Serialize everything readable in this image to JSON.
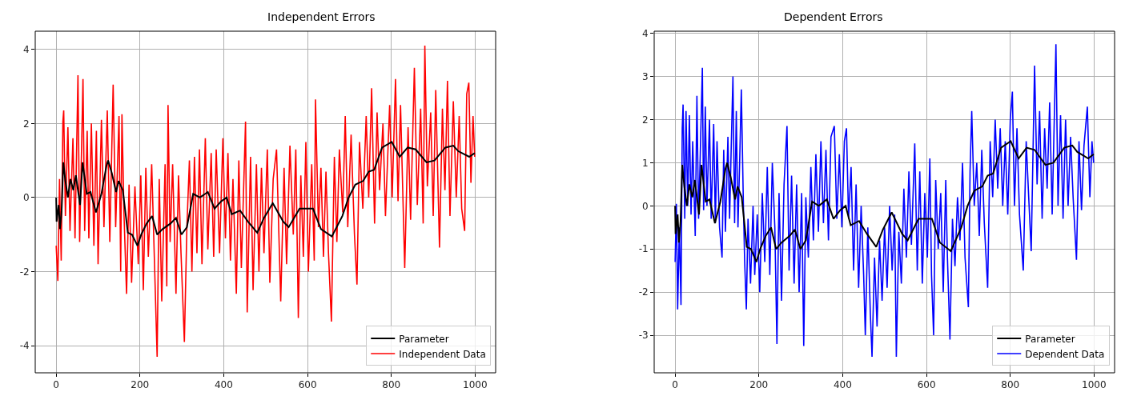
{
  "chart_data": [
    {
      "type": "line",
      "title": "Independent Errors",
      "xlim": [
        -50,
        1049
      ],
      "xticks": [
        0,
        200,
        400,
        600,
        800,
        1000
      ],
      "ylim": [
        -4.73,
        4.49
      ],
      "yticks": [
        -4,
        -2,
        0,
        2,
        4
      ],
      "grid": true,
      "legend": "bottom right",
      "marker": "none",
      "line_style": "solid",
      "series": [
        {
          "name": "Parameter",
          "color": "#000000",
          "x": [
            0,
            1,
            6,
            9,
            13,
            17,
            22,
            28,
            34,
            41,
            47,
            57,
            63,
            73,
            82,
            95,
            108,
            120,
            124,
            133,
            143,
            149,
            159,
            171,
            181,
            194,
            203,
            216,
            229,
            241,
            254,
            273,
            286,
            299,
            312,
            327,
            343,
            362,
            378,
            394,
            407,
            419,
            439,
            458,
            480,
            496,
            517,
            542,
            555,
            581,
            613,
            632,
            658,
            683,
            698,
            714,
            733,
            746,
            759,
            778,
            801,
            820,
            839,
            858,
            884,
            903,
            929,
            948,
            960,
            986,
            999
          ],
          "values": [
            0,
            -0.65,
            -0.2,
            -0.85,
            -0.35,
            0.95,
            0.45,
            0,
            0.5,
            0.2,
            0.6,
            -0.2,
            0.95,
            0.1,
            0.15,
            -0.4,
            0.1,
            0.85,
            1.0,
            0.65,
            0.15,
            0.45,
            0.2,
            -0.95,
            -1.0,
            -1.3,
            -1.0,
            -0.7,
            -0.5,
            -1.0,
            -0.85,
            -0.7,
            -0.55,
            -1.0,
            -0.8,
            0.1,
            0.0,
            0.15,
            -0.3,
            -0.1,
            0.0,
            -0.45,
            -0.35,
            -0.65,
            -0.95,
            -0.55,
            -0.15,
            -0.65,
            -0.8,
            -0.3,
            -0.3,
            -0.85,
            -1.05,
            -0.5,
            0.0,
            0.35,
            0.45,
            0.7,
            0.75,
            1.35,
            1.5,
            1.1,
            1.35,
            1.3,
            0.95,
            1.0,
            1.35,
            1.4,
            1.25,
            1.1,
            1.2
          ]
        },
        {
          "name": "Independent Data",
          "color": "#ff0000",
          "x": [
            0,
            4,
            8,
            12,
            16,
            18,
            22,
            28,
            33,
            40,
            45,
            52,
            56,
            64,
            68,
            74,
            78,
            84,
            90,
            96,
            100,
            108,
            114,
            122,
            128,
            136,
            142,
            150,
            154,
            157,
            162,
            168,
            174,
            180,
            188,
            196,
            202,
            208,
            214,
            220,
            228,
            234,
            241,
            246,
            252,
            260,
            264,
            267,
            272,
            278,
            286,
            292,
            298,
            306,
            312,
            318,
            324,
            330,
            336,
            342,
            348,
            356,
            362,
            370,
            376,
            382,
            390,
            398,
            404,
            410,
            416,
            422,
            430,
            436,
            442,
            452,
            456,
            464,
            470,
            478,
            484,
            490,
            496,
            504,
            510,
            518,
            526,
            536,
            544,
            550,
            558,
            566,
            572,
            578,
            584,
            590,
            596,
            602,
            610,
            616,
            619,
            626,
            632,
            638,
            644,
            650,
            657,
            664,
            670,
            676,
            684,
            690,
            696,
            704,
            712,
            718,
            724,
            732,
            740,
            746,
            753,
            760,
            766,
            772,
            780,
            786,
            796,
            802,
            810,
            816,
            822,
            832,
            840,
            846,
            855,
            862,
            870,
            876,
            880,
            886,
            894,
            900,
            906,
            915,
            922,
            928,
            934,
            940,
            948,
            955,
            962,
            968,
            975,
            980,
            985,
            990,
            995,
            999
          ],
          "values": [
            -1.3,
            -2.25,
            0.5,
            -1.7,
            2.05,
            2.35,
            -0.5,
            1.9,
            -0.9,
            1.6,
            -1.1,
            3.3,
            -1.2,
            3.2,
            -0.9,
            1.8,
            -1.1,
            2.0,
            -1.3,
            1.8,
            -1.8,
            2.1,
            -0.8,
            2.35,
            -1.2,
            3.05,
            -0.8,
            2.2,
            -2.0,
            2.25,
            -0.5,
            -2.6,
            0.35,
            -2.3,
            0.3,
            -1.8,
            0.6,
            -2.5,
            0.8,
            -1.6,
            0.9,
            -1.5,
            -4.3,
            0.5,
            -2.8,
            0.9,
            -2.4,
            2.5,
            -1.2,
            0.9,
            -2.6,
            0.6,
            -1.5,
            -3.9,
            -0.8,
            1.0,
            -2.0,
            1.1,
            -1.5,
            1.3,
            -1.8,
            1.6,
            -1.4,
            1.2,
            -1.6,
            1.3,
            -1.5,
            1.6,
            -1.1,
            1.2,
            -1.7,
            0.5,
            -2.6,
            1.0,
            -1.9,
            2.05,
            -3.1,
            1.1,
            -2.5,
            0.9,
            -2.0,
            0.8,
            -1.5,
            1.3,
            -2.3,
            0.5,
            1.3,
            -2.8,
            0.8,
            -1.8,
            1.4,
            -1.0,
            1.3,
            -3.25,
            0.6,
            -1.6,
            1.5,
            -2.0,
            0.9,
            -1.7,
            2.65,
            -0.8,
            0.8,
            -1.6,
            0.7,
            -1.5,
            -3.35,
            1.1,
            -1.2,
            1.3,
            -0.4,
            2.2,
            -0.8,
            1.7,
            -1.0,
            -2.35,
            1.5,
            -0.3,
            2.2,
            0.0,
            2.95,
            -0.7,
            2.3,
            0.2,
            2.0,
            -0.5,
            2.5,
            0.0,
            3.2,
            -0.1,
            2.5,
            -1.9,
            1.9,
            -0.6,
            3.5,
            -0.2,
            2.4,
            -0.7,
            4.1,
            0.3,
            2.3,
            -0.5,
            2.9,
            -1.35,
            2.4,
            0.2,
            3.15,
            -0.5,
            2.6,
            0.0,
            2.2,
            -0.3,
            -0.9,
            2.8,
            3.1,
            0.4,
            2.2,
            1.1
          ]
        }
      ]
    },
    {
      "type": "line",
      "title": "Dependent Errors",
      "xlim": [
        -50,
        1049
      ],
      "xticks": [
        0,
        200,
        400,
        600,
        800,
        1000
      ],
      "ylim": [
        -3.87,
        4.05
      ],
      "yticks": [
        -3,
        -2,
        -1,
        0,
        1,
        2,
        3,
        4
      ],
      "grid": true,
      "legend": "bottom right",
      "marker": "none",
      "line_style": "solid",
      "series": [
        {
          "name": "Parameter",
          "color": "#000000",
          "x": [
            0,
            1,
            6,
            9,
            13,
            17,
            22,
            28,
            34,
            41,
            47,
            57,
            63,
            73,
            82,
            95,
            108,
            120,
            124,
            133,
            143,
            149,
            159,
            171,
            181,
            194,
            203,
            216,
            229,
            241,
            254,
            273,
            286,
            299,
            312,
            327,
            343,
            362,
            378,
            394,
            407,
            419,
            439,
            458,
            480,
            496,
            517,
            542,
            555,
            581,
            613,
            632,
            658,
            683,
            698,
            714,
            733,
            746,
            759,
            778,
            801,
            820,
            839,
            858,
            884,
            903,
            929,
            948,
            960,
            986,
            999
          ],
          "values": [
            0,
            -0.65,
            -0.2,
            -0.85,
            -0.35,
            0.95,
            0.45,
            0,
            0.5,
            0.2,
            0.6,
            -0.2,
            0.95,
            0.1,
            0.15,
            -0.4,
            0.1,
            0.85,
            1.0,
            0.65,
            0.15,
            0.45,
            0.2,
            -0.95,
            -1.0,
            -1.3,
            -1.0,
            -0.7,
            -0.5,
            -1.0,
            -0.85,
            -0.7,
            -0.55,
            -1.0,
            -0.8,
            0.1,
            0.0,
            0.15,
            -0.3,
            -0.1,
            0.0,
            -0.45,
            -0.35,
            -0.65,
            -0.95,
            -0.55,
            -0.15,
            -0.65,
            -0.8,
            -0.3,
            -0.3,
            -0.85,
            -1.05,
            -0.5,
            0.0,
            0.35,
            0.45,
            0.7,
            0.75,
            1.35,
            1.5,
            1.1,
            1.35,
            1.3,
            0.95,
            1.0,
            1.35,
            1.4,
            1.25,
            1.1,
            1.2
          ]
        },
        {
          "name": "Dependent Data",
          "color": "#0000ff",
          "x": [
            0,
            3,
            6,
            10,
            14,
            17,
            19,
            23,
            26,
            30,
            34,
            38,
            42,
            48,
            52,
            56,
            60,
            65,
            68,
            72,
            76,
            82,
            86,
            92,
            96,
            100,
            106,
            112,
            116,
            120,
            126,
            130,
            134,
            138,
            142,
            146,
            150,
            154,
            158,
            163,
            166,
            170,
            174,
            180,
            186,
            190,
            196,
            202,
            208,
            214,
            220,
            226,
            232,
            238,
            243,
            248,
            254,
            260,
            267,
            272,
            278,
            284,
            290,
            296,
            302,
            307,
            312,
            318,
            324,
            330,
            336,
            342,
            348,
            354,
            360,
            366,
            372,
            380,
            386,
            392,
            398,
            404,
            409,
            414,
            420,
            426,
            432,
            438,
            444,
            450,
            454,
            460,
            466,
            470,
            476,
            482,
            488,
            494,
            500,
            506,
            512,
            518,
            524,
            528,
            534,
            540,
            546,
            552,
            558,
            564,
            572,
            578,
            584,
            590,
            596,
            602,
            608,
            612,
            617,
            622,
            628,
            634,
            640,
            646,
            650,
            656,
            662,
            668,
            674,
            680,
            686,
            692,
            700,
            704,
            708,
            714,
            720,
            726,
            732,
            738,
            746,
            752,
            758,
            764,
            770,
            776,
            782,
            788,
            794,
            800,
            805,
            810,
            816,
            822,
            831,
            838,
            844,
            850,
            858,
            864,
            870,
            876,
            882,
            888,
            894,
            900,
            905,
            909,
            914,
            920,
            926,
            932,
            938,
            944,
            950,
            958,
            964,
            970,
            976,
            984,
            990,
            995,
            999
          ],
          "values": [
            -1.3,
            0.05,
            -2.4,
            -0.5,
            -2.3,
            1.8,
            2.35,
            -0.3,
            2.2,
            0.0,
            2.1,
            -0.2,
            1.5,
            -0.7,
            2.55,
            -0.3,
            1.2,
            3.2,
            -0.1,
            2.3,
            0.0,
            2.0,
            -0.3,
            1.9,
            -0.4,
            1.5,
            -0.5,
            -1.2,
            1.3,
            -0.6,
            1.6,
            -0.3,
            1.4,
            3.0,
            -0.4,
            2.2,
            -0.5,
            1.0,
            2.7,
            0.0,
            -1.3,
            -2.4,
            -0.3,
            -1.8,
            0.0,
            -1.6,
            -0.2,
            -2.0,
            0.3,
            -1.3,
            0.9,
            -1.6,
            1.0,
            -0.5,
            -3.2,
            0.3,
            -2.2,
            0.5,
            1.85,
            -1.5,
            0.7,
            -1.8,
            0.5,
            -2.0,
            0.3,
            -3.25,
            0.2,
            -1.2,
            0.9,
            -0.8,
            1.2,
            -0.6,
            1.5,
            -0.4,
            1.3,
            -0.8,
            1.6,
            1.85,
            -0.3,
            1.2,
            -0.5,
            1.5,
            1.8,
            -0.3,
            0.9,
            -1.5,
            0.5,
            -1.9,
            0.0,
            -1.6,
            -3.0,
            -0.5,
            -2.5,
            -3.5,
            -1.2,
            -2.8,
            -0.8,
            -2.2,
            -0.5,
            -1.9,
            0.0,
            -1.5,
            -0.2,
            -3.5,
            -0.6,
            -1.8,
            0.4,
            -1.2,
            0.8,
            -0.9,
            1.45,
            -1.5,
            0.8,
            -1.8,
            0.3,
            -1.2,
            1.1,
            -1.6,
            -3.0,
            0.6,
            -1.0,
            0.3,
            -2.0,
            0.6,
            -1.2,
            -3.1,
            -0.3,
            -1.4,
            0.2,
            -0.8,
            1.0,
            -1.2,
            -2.35,
            0.8,
            2.2,
            0.0,
            1.0,
            -0.7,
            1.3,
            -0.4,
            -1.9,
            1.5,
            0.2,
            2.0,
            0.4,
            1.8,
            0.0,
            1.5,
            -0.2,
            2.0,
            2.65,
            0.0,
            1.8,
            -0.2,
            -1.5,
            1.5,
            0.2,
            -1.05,
            3.25,
            0.5,
            2.2,
            -0.3,
            1.8,
            0.4,
            2.4,
            -0.2,
            2.0,
            3.75,
            0.0,
            2.1,
            -0.3,
            2.0,
            0.0,
            1.6,
            0.2,
            -1.25,
            1.5,
            -0.1,
            1.4,
            2.3,
            0.2,
            1.5,
            1.0
          ]
        }
      ]
    }
  ]
}
